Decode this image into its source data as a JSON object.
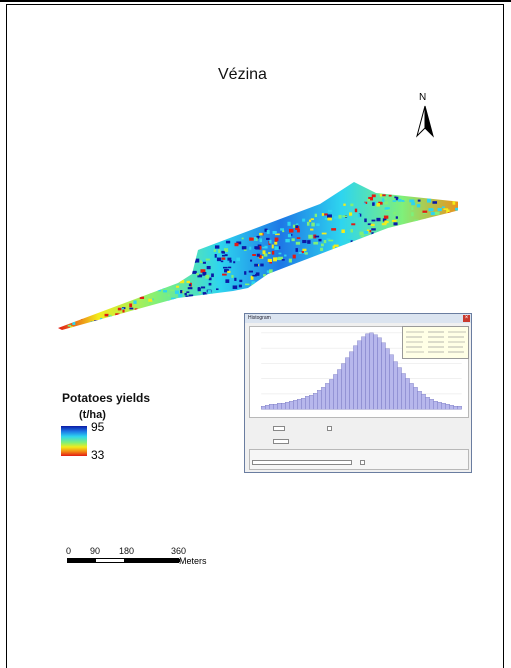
{
  "map": {
    "title": "Vézina",
    "north_label": "N",
    "colors": {
      "high": "#0b1aa6",
      "mid_high": "#2ed5ef",
      "mid": "#7ff07a",
      "mid_low": "#f3ec1b",
      "low": "#e21b14"
    }
  },
  "legend": {
    "title": "Potatoes yields",
    "unit": "(t/ha)",
    "max": "95",
    "min": "33"
  },
  "scale_bar": {
    "ticks": [
      "0",
      "90",
      "180",
      "360"
    ],
    "units": "Meters"
  },
  "histogram_window": {
    "title": "Histogram",
    "close_icon": "close-icon",
    "bar_color": "#b7b7ec",
    "bar_edge": "#5a5ab0",
    "counts": [
      3,
      4,
      5,
      5,
      6,
      6,
      7,
      8,
      9,
      10,
      11,
      13,
      14,
      16,
      19,
      22,
      26,
      30,
      35,
      40,
      46,
      52,
      58,
      64,
      69,
      73,
      76,
      77,
      75,
      72,
      67,
      61,
      55,
      48,
      42,
      36,
      31,
      26,
      22,
      18,
      15,
      12,
      10,
      8,
      7,
      6,
      5,
      4,
      3,
      3
    ]
  }
}
